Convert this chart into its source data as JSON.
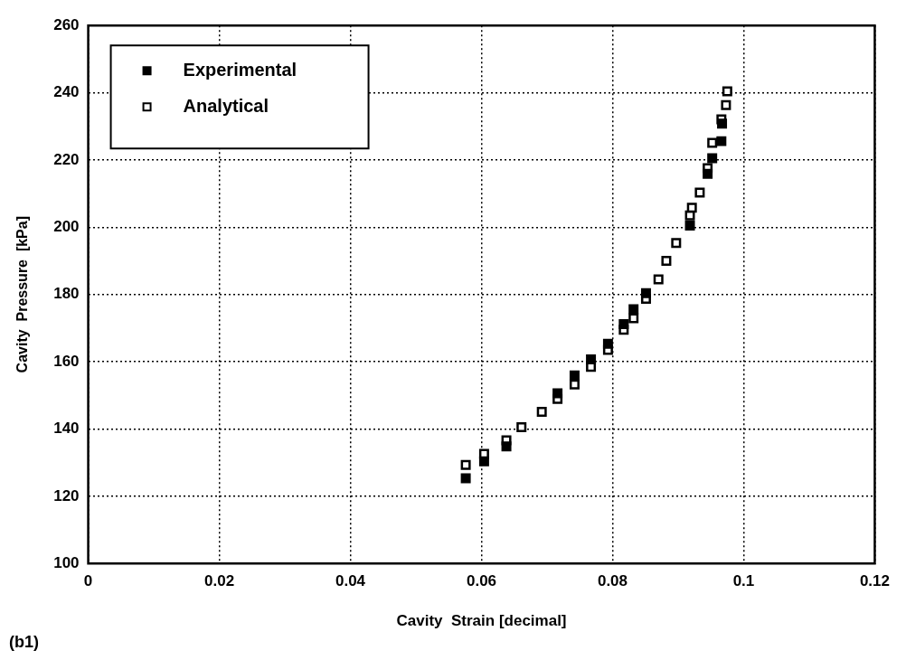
{
  "chart_data": {
    "type": "scatter",
    "xlabel": "Cavity  Strain [decimal]",
    "ylabel": "Cavity  Pressure  [kPa]",
    "xlim": [
      0,
      0.12
    ],
    "xticks": [
      0,
      0.02,
      0.04,
      0.06,
      0.08,
      0.1,
      0.12
    ],
    "ylim": [
      100,
      260
    ],
    "yticks": [
      100,
      120,
      140,
      160,
      180,
      200,
      220,
      240,
      260
    ],
    "grid": true,
    "legend": "top left",
    "marker": "square",
    "annotations": [
      "(b1)"
    ],
    "series": [
      {
        "name": "Experimental",
        "color": "#000000",
        "x": [
          0.0576,
          0.0604,
          0.0638,
          0.0716,
          0.0742,
          0.0767,
          0.0793,
          0.0817,
          0.0832,
          0.0851,
          0.0918,
          0.0945,
          0.0952,
          0.0966,
          0.0967
        ],
        "values": [
          125.3,
          130.4,
          134.8,
          150.6,
          155.9,
          160.7,
          165.3,
          171.2,
          175.6,
          180.4,
          200.5,
          215.9,
          220.5,
          225.6,
          230.8
        ]
      },
      {
        "name": "Analytical",
        "color": "#000000",
        "x": [
          0.0576,
          0.0604,
          0.0638,
          0.0661,
          0.0692,
          0.0716,
          0.0742,
          0.0767,
          0.0793,
          0.0817,
          0.0832,
          0.0851,
          0.087,
          0.0882,
          0.0897,
          0.0918,
          0.0921,
          0.0933,
          0.0945,
          0.0952,
          0.0966,
          0.0973,
          0.0975
        ],
        "values": [
          129.3,
          132.6,
          136.6,
          140.5,
          145.1,
          148.9,
          153.2,
          158.5,
          163.5,
          169.5,
          172.9,
          178.7,
          184.5,
          190,
          195.3,
          203.5,
          205.8,
          210.3,
          217.6,
          225.1,
          232.1,
          236.3,
          240.4
        ]
      }
    ]
  }
}
